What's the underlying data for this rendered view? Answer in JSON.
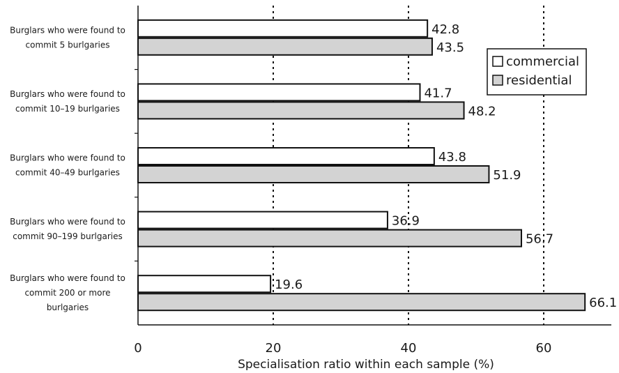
{
  "chart_data": {
    "type": "bar",
    "orientation": "horizontal",
    "categories": [
      [
        "Burglars who were found to",
        "commit 5 burlgaries"
      ],
      [
        "Burglars who were found to",
        "commit 10–19 burlgaries"
      ],
      [
        "Burglars who were found to",
        "commit 40–49 burlgaries"
      ],
      [
        "Burglars who were found to",
        "commit 90–199 burlgaries"
      ],
      [
        "Burglars who were found to",
        "commit 200 or more",
        "burlgaries"
      ]
    ],
    "series": [
      {
        "name": "commercial",
        "values": [
          42.8,
          41.7,
          43.8,
          36.9,
          19.6
        ],
        "color": "#ffffff"
      },
      {
        "name": "residential",
        "values": [
          43.5,
          48.2,
          51.9,
          56.7,
          66.1
        ],
        "color": "#d3d3d3"
      }
    ],
    "xlabel": "Specialisation ratio within each sample (%)",
    "ylabel": "",
    "xlim": [
      0,
      70
    ],
    "xticks": [
      0,
      20,
      40,
      60
    ],
    "gridlines": [
      20,
      40,
      60
    ],
    "grid_style": "dotted vertical",
    "legend_position": "top-right",
    "data_labels": true
  }
}
